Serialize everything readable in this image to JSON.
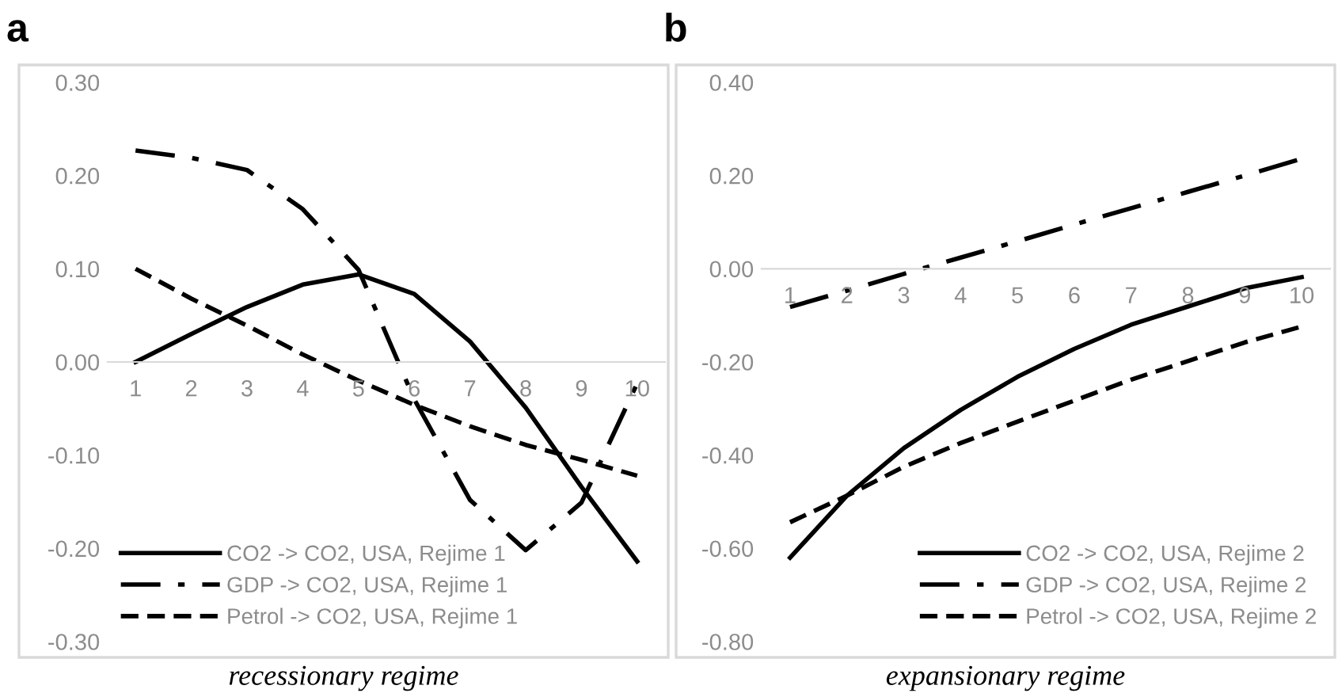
{
  "chart_data": [
    {
      "type": "line",
      "title": "a",
      "categories": [
        "1",
        "2",
        "3",
        "4",
        "5",
        "6",
        "7",
        "8",
        "9",
        "10"
      ],
      "series": [
        {
          "name": "CO2 -> CO2, USA, Rejime 1",
          "color": "#000000",
          "line_style": "solid",
          "values": [
            0.0,
            0.03,
            0.059,
            0.083,
            0.094,
            0.073,
            0.022,
            -0.049,
            -0.134,
            -0.214
          ]
        },
        {
          "name": "GDP -> CO2, USA, Rejime 1",
          "color": "#000000",
          "line_style": "dashdot",
          "values": [
            0.227,
            0.219,
            0.206,
            0.164,
            0.099,
            -0.04,
            -0.148,
            -0.202,
            -0.151,
            -0.023
          ]
        },
        {
          "name": "Petrol -> CO2, USA, Rejime 1",
          "color": "#000000",
          "line_style": "dashed",
          "values": [
            0.1,
            0.068,
            0.039,
            0.008,
            -0.02,
            -0.046,
            -0.069,
            -0.089,
            -0.105,
            -0.122
          ]
        }
      ],
      "ylim": [
        -0.3,
        0.3
      ],
      "yticks": [
        {
          "value": -0.3,
          "label": "-0.30"
        },
        {
          "value": -0.2,
          "label": "-0.20"
        },
        {
          "value": -0.1,
          "label": "-0.10"
        },
        {
          "value": 0,
          "label": "0.00"
        },
        {
          "value": 0.1,
          "label": "0.10"
        },
        {
          "value": 0.2,
          "label": "0.20"
        },
        {
          "value": 0.3,
          "label": "0.30"
        }
      ],
      "legend": "bottom left",
      "marker": "none",
      "annotations": [
        "recessionary regime"
      ]
    },
    {
      "type": "line",
      "title": "b",
      "categories": [
        "1",
        "2",
        "3",
        "4",
        "5",
        "6",
        "7",
        "8",
        "9",
        "10"
      ],
      "series": [
        {
          "name": "CO2 -> CO2, USA, Rejime 2",
          "color": "#000000",
          "line_style": "solid",
          "values": [
            -0.62,
            -0.487,
            -0.385,
            -0.303,
            -0.232,
            -0.172,
            -0.12,
            -0.081,
            -0.042,
            -0.018
          ]
        },
        {
          "name": "GDP -> CO2, USA, Rejime 2",
          "color": "#000000",
          "line_style": "dashdot",
          "values": [
            -0.082,
            -0.047,
            -0.011,
            0.024,
            0.059,
            0.095,
            0.13,
            0.165,
            0.2,
            0.236
          ]
        },
        {
          "name": "Petrol -> CO2, USA, Rejime 2",
          "color": "#000000",
          "line_style": "dashed",
          "values": [
            -0.544,
            -0.487,
            -0.425,
            -0.374,
            -0.328,
            -0.283,
            -0.238,
            -0.198,
            -0.158,
            -0.124
          ]
        }
      ],
      "ylim": [
        -0.8,
        0.4
      ],
      "yticks": [
        {
          "value": -0.8,
          "label": "-0.80"
        },
        {
          "value": -0.6,
          "label": "-0.60"
        },
        {
          "value": -0.4,
          "label": "-0.40"
        },
        {
          "value": -0.2,
          "label": "-0.20"
        },
        {
          "value": 0,
          "label": "0.00"
        },
        {
          "value": 0.2,
          "label": "0.20"
        },
        {
          "value": 0.4,
          "label": "0.40"
        }
      ],
      "legend": "bottom right",
      "marker": "none",
      "annotations": [
        "expansionary regime"
      ]
    }
  ]
}
